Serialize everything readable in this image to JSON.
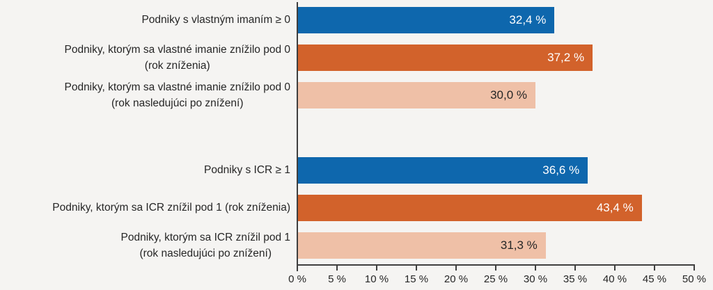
{
  "chart_data": {
    "type": "bar",
    "orientation": "horizontal",
    "title": "",
    "xlabel": "",
    "ylabel": "",
    "xlim": [
      0,
      50
    ],
    "xtick_step": 5,
    "xticks": [
      "0 %",
      "5 %",
      "10 %",
      "15 %",
      "20 %",
      "25 %",
      "30 %",
      "35 %",
      "40 %",
      "45 %",
      "50 %"
    ],
    "grid": false,
    "legend": false,
    "background": "#f5f4f2",
    "axis_color": "#3f3f3f",
    "text_color": "#262626",
    "colors": {
      "blue": "#0e67ad",
      "orange": "#d2622b",
      "pink": "#efc0a7"
    },
    "bars": [
      {
        "label": "Podniky s vlastným imaním ≥ 0",
        "value": 32.4,
        "display": "32,4 %",
        "color": "blue",
        "text": "light"
      },
      {
        "label": "Podniky, ktorým sa vlastné imanie znížilo pod 0\n(rok zníženia)",
        "value": 37.2,
        "display": "37,2 %",
        "color": "orange",
        "text": "light"
      },
      {
        "label": "Podniky, ktorým sa vlastné imanie znížilo pod 0\n(rok nasledujúci po znížení)",
        "value": 30.0,
        "display": "30,0 %",
        "color": "pink",
        "text": "dark"
      },
      {
        "label": "Podniky s ICR ≥ 1",
        "value": 36.6,
        "display": "36,6 %",
        "color": "blue",
        "text": "light"
      },
      {
        "label": "Podniky, ktorým sa ICR znížil pod 1 (rok zníženia)",
        "value": 43.4,
        "display": "43,4 %",
        "color": "orange",
        "text": "light"
      },
      {
        "label": "Podniky, ktorým sa ICR znížil pod 1\n(rok nasledujúci po znížení)",
        "value": 31.3,
        "display": "31,3 %",
        "color": "pink",
        "text": "dark"
      }
    ]
  }
}
